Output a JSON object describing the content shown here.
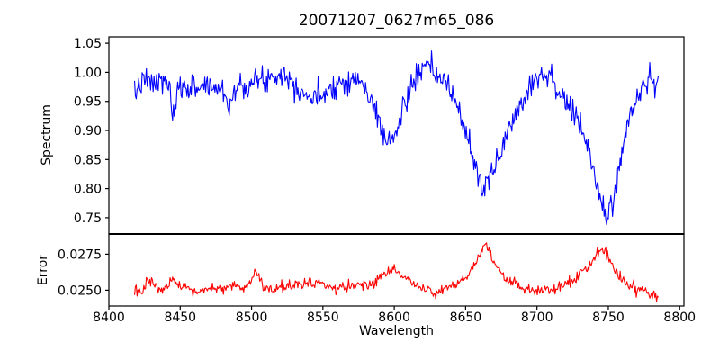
{
  "chart_data": {
    "type": "line",
    "title": "20071207_0627m65_086",
    "xlabel": "Wavelength",
    "background_color": "#ffffff",
    "axis_color": "#000000",
    "grid": false,
    "legend": false,
    "x": {
      "lim": [
        8400,
        8803
      ],
      "ticks": [
        8400,
        8450,
        8500,
        8550,
        8600,
        8650,
        8700,
        8750,
        8800
      ],
      "tick_labels": [
        "8400",
        "8450",
        "8500",
        "8550",
        "8600",
        "8650",
        "8700",
        "8750",
        "8800"
      ],
      "data_start": 8418,
      "data_end": 8785,
      "n_points": 620
    },
    "panels": [
      {
        "name": "spectrum",
        "ylabel": "Spectrum",
        "color": "#0000ff",
        "ylim": [
          0.722,
          1.061
        ],
        "yticks": [
          0.75,
          0.8,
          0.85,
          0.9,
          0.95,
          1.0,
          1.05
        ],
        "ytick_labels": [
          "0.75",
          "0.80",
          "0.85",
          "0.90",
          "0.95",
          "1.00",
          "1.05"
        ],
        "noise_sigma": 0.011,
        "seed": 7,
        "envelope": [
          [
            8418,
            0.955
          ],
          [
            8421,
            0.98
          ],
          [
            8426,
            0.985
          ],
          [
            8432,
            0.98
          ],
          [
            8438,
            0.985
          ],
          [
            8443,
            0.975
          ],
          [
            8445,
            0.905
          ],
          [
            8448,
            0.965
          ],
          [
            8452,
            0.975
          ],
          [
            8460,
            0.975
          ],
          [
            8468,
            0.978
          ],
          [
            8476,
            0.972
          ],
          [
            8482,
            0.965
          ],
          [
            8484,
            0.935
          ],
          [
            8487,
            0.965
          ],
          [
            8492,
            0.978
          ],
          [
            8500,
            0.982
          ],
          [
            8508,
            0.985
          ],
          [
            8515,
            0.995
          ],
          [
            8520,
            1.0
          ],
          [
            8526,
            0.99
          ],
          [
            8533,
            0.975
          ],
          [
            8540,
            0.958
          ],
          [
            8545,
            0.952
          ],
          [
            8552,
            0.97
          ],
          [
            8560,
            0.98
          ],
          [
            8568,
            0.988
          ],
          [
            8576,
            0.985
          ],
          [
            8582,
            0.96
          ],
          [
            8588,
            0.925
          ],
          [
            8594,
            0.888
          ],
          [
            8598,
            0.878
          ],
          [
            8602,
            0.9
          ],
          [
            8607,
            0.945
          ],
          [
            8612,
            0.975
          ],
          [
            8618,
            1.0
          ],
          [
            8622,
            1.008
          ],
          [
            8627,
            1.0
          ],
          [
            8633,
            0.99
          ],
          [
            8638,
            0.972
          ],
          [
            8644,
            0.945
          ],
          [
            8650,
            0.9
          ],
          [
            8656,
            0.845
          ],
          [
            8661,
            0.805
          ],
          [
            8664,
            0.8
          ],
          [
            8668,
            0.822
          ],
          [
            8674,
            0.862
          ],
          [
            8680,
            0.9
          ],
          [
            8687,
            0.94
          ],
          [
            8694,
            0.972
          ],
          [
            8700,
            0.995
          ],
          [
            8706,
            1.0
          ],
          [
            8711,
            0.985
          ],
          [
            8717,
            0.962
          ],
          [
            8723,
            0.938
          ],
          [
            8729,
            0.912
          ],
          [
            8735,
            0.88
          ],
          [
            8740,
            0.825
          ],
          [
            8745,
            0.775
          ],
          [
            8749,
            0.752
          ],
          [
            8753,
            0.775
          ],
          [
            8758,
            0.845
          ],
          [
            8763,
            0.9
          ],
          [
            8768,
            0.945
          ],
          [
            8772,
            0.968
          ],
          [
            8777,
            0.985
          ],
          [
            8781,
            0.988
          ],
          [
            8785,
            0.97
          ]
        ]
      },
      {
        "name": "error",
        "ylabel": "Error",
        "color": "#ff0000",
        "ylim": [
          0.0239,
          0.0289
        ],
        "yticks": [
          0.025,
          0.0275
        ],
        "ytick_labels": [
          "0.0250",
          "0.0275"
        ],
        "noise_sigma": 0.0002,
        "seed": 13,
        "envelope": [
          [
            8418,
            0.0248
          ],
          [
            8424,
            0.025
          ],
          [
            8429,
            0.0259
          ],
          [
            8432,
            0.0252
          ],
          [
            8438,
            0.025
          ],
          [
            8445,
            0.0257
          ],
          [
            8449,
            0.0252
          ],
          [
            8456,
            0.025
          ],
          [
            8464,
            0.0249
          ],
          [
            8472,
            0.0251
          ],
          [
            8480,
            0.0252
          ],
          [
            8486,
            0.0253
          ],
          [
            8492,
            0.0251
          ],
          [
            8498,
            0.0252
          ],
          [
            8503,
            0.0264
          ],
          [
            8507,
            0.0253
          ],
          [
            8513,
            0.0251
          ],
          [
            8520,
            0.0252
          ],
          [
            8528,
            0.0253
          ],
          [
            8536,
            0.0255
          ],
          [
            8543,
            0.0256
          ],
          [
            8550,
            0.0253
          ],
          [
            8558,
            0.0251
          ],
          [
            8566,
            0.0252
          ],
          [
            8574,
            0.0253
          ],
          [
            8581,
            0.0254
          ],
          [
            8588,
            0.0257
          ],
          [
            8595,
            0.0262
          ],
          [
            8600,
            0.0266
          ],
          [
            8605,
            0.0261
          ],
          [
            8612,
            0.0255
          ],
          [
            8620,
            0.0251
          ],
          [
            8628,
            0.0249
          ],
          [
            8635,
            0.025
          ],
          [
            8642,
            0.0253
          ],
          [
            8649,
            0.0258
          ],
          [
            8655,
            0.0265
          ],
          [
            8660,
            0.0275
          ],
          [
            8664,
            0.0282
          ],
          [
            8668,
            0.0273
          ],
          [
            8673,
            0.0263
          ],
          [
            8680,
            0.0257
          ],
          [
            8688,
            0.0252
          ],
          [
            8696,
            0.025
          ],
          [
            8703,
            0.0248
          ],
          [
            8710,
            0.025
          ],
          [
            8717,
            0.0253
          ],
          [
            8724,
            0.0256
          ],
          [
            8731,
            0.0261
          ],
          [
            8738,
            0.0269
          ],
          [
            8744,
            0.0278
          ],
          [
            8748,
            0.0278
          ],
          [
            8752,
            0.027
          ],
          [
            8758,
            0.026
          ],
          [
            8764,
            0.0253
          ],
          [
            8770,
            0.0251
          ],
          [
            8776,
            0.025
          ],
          [
            8781,
            0.0247
          ],
          [
            8785,
            0.0243
          ]
        ]
      }
    ]
  }
}
